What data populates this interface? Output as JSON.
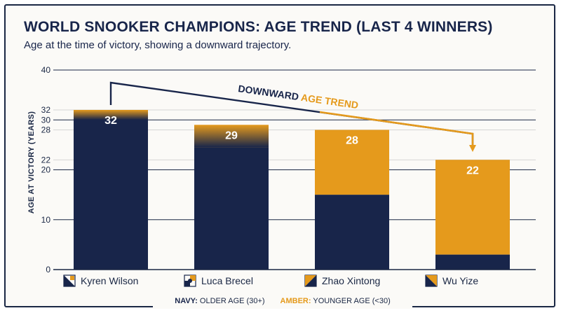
{
  "title": "WORLD SNOOKER CHAMPIONS: AGE TREND (LAST 4 WINNERS)",
  "subtitle": "Age at the time of victory, showing a downward trajectory.",
  "legend": {
    "navy_key": "NAVY:",
    "navy_text": "OLDER AGE (30+)",
    "amber_key": "AMBER:",
    "amber_text": "YOUNGER AGE (<30)"
  },
  "chart_data": {
    "type": "bar",
    "title": "WORLD SNOOKER CHAMPIONS: AGE TREND (LAST 4 WINNERS)",
    "ylabel": "AGE AT VICTORY (YEARS)",
    "ylim": [
      0,
      40
    ],
    "yticks": [
      0,
      10,
      20,
      22,
      28,
      30,
      32,
      40
    ],
    "grid": true,
    "categories": [
      "Kyren Wilson",
      "Luca Brecel",
      "Zhao Xintong",
      "Wu Yize"
    ],
    "values": [
      32,
      29,
      28,
      22
    ],
    "navy_portion": [
      31.5,
      24.5,
      15,
      3
    ],
    "annotation": {
      "text_dark": "DOWNWARD",
      "text_amber": "AGE TREND"
    },
    "colors": {
      "navy": "#18254a",
      "amber": "#e59a1c",
      "grid": "#c9c9c9"
    }
  }
}
